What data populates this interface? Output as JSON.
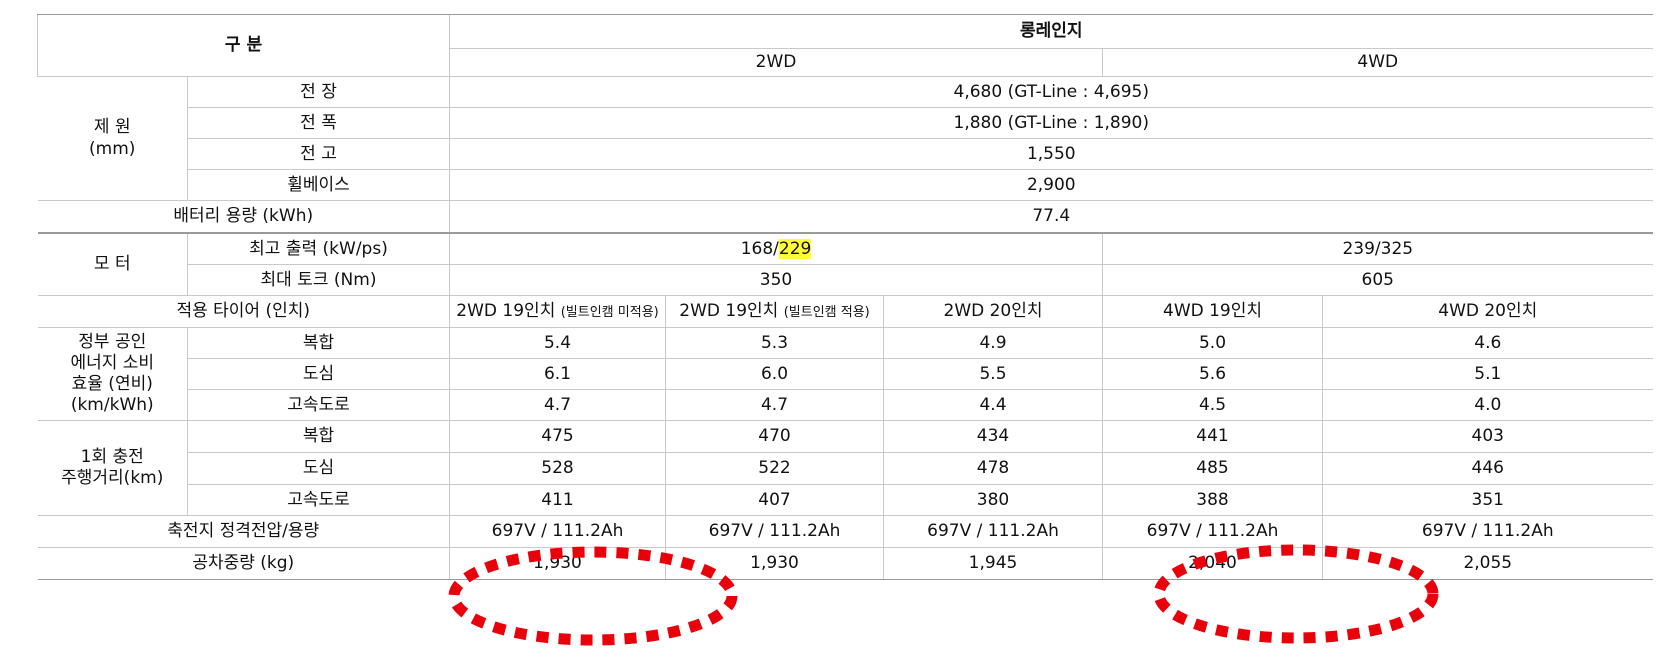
{
  "header": {
    "category": "구 분",
    "long_range": "롱레인지",
    "wd2": "2WD",
    "wd4": "4WD"
  },
  "specs": {
    "group_label": "제 원",
    "group_unit": "(mm)",
    "length_label": "전 장",
    "length_value": "4,680 (GT-Line : 4,695)",
    "width_label": "전 폭",
    "width_value": "1,880 (GT-Line : 1,890)",
    "height_label": "전 고",
    "height_value": "1,550",
    "wheelbase_label": "휠베이스",
    "wheelbase_value": "2,900"
  },
  "battery": {
    "label": "배터리 용량 (kWh)",
    "value": "77.4"
  },
  "motor": {
    "group_label": "모 터",
    "power_label": "최고 출력 (kW/ps)",
    "power_2wd_kw": "168/",
    "power_2wd_ps": "229",
    "power_4wd": "239/325",
    "torque_label": "최대 토크 (Nm)",
    "torque_2wd": "350",
    "torque_4wd": "605"
  },
  "tires": {
    "label": "적용 타이어 (인치)",
    "columns": [
      {
        "main": "2WD 19인치 ",
        "note": "(빌트인캠 미적용)"
      },
      {
        "main": "2WD 19인치 ",
        "note": "(빌트인캠 적용)"
      },
      {
        "main": "2WD 20인치",
        "note": ""
      },
      {
        "main": "4WD 19인치",
        "note": ""
      },
      {
        "main": "4WD 20인치",
        "note": ""
      }
    ]
  },
  "efficiency": {
    "group_line1": "정부 공인",
    "group_line2": "에너지 소비",
    "group_line3": "효율 (연비)",
    "group_line4": "(km/kWh)",
    "rows": [
      {
        "label": "복합",
        "values": [
          "5.4",
          "5.3",
          "4.9",
          "5.0",
          "4.6"
        ]
      },
      {
        "label": "도심",
        "values": [
          "6.1",
          "6.0",
          "5.5",
          "5.6",
          "5.1"
        ]
      },
      {
        "label": "고속도로",
        "values": [
          "4.7",
          "4.7",
          "4.4",
          "4.5",
          "4.0"
        ]
      }
    ]
  },
  "range": {
    "group_line1": "1회 충전",
    "group_line2": "주행거리(km)",
    "rows": [
      {
        "label": "복합",
        "values": [
          "475",
          "470",
          "434",
          "441",
          "403"
        ]
      },
      {
        "label": "도심",
        "values": [
          "528",
          "522",
          "478",
          "485",
          "446"
        ]
      },
      {
        "label": "고속도로",
        "values": [
          "411",
          "407",
          "380",
          "388",
          "351"
        ]
      }
    ]
  },
  "voltage": {
    "label": "축전지 정격전압/용량",
    "values": [
      "697V / 111.2Ah",
      "697V / 111.2Ah",
      "697V / 111.2Ah",
      "697V / 111.2Ah",
      "697V / 111.2Ah"
    ]
  },
  "weight": {
    "label": "공차중량 (kg)",
    "values": [
      "1,930",
      "1,930",
      "1,945",
      "2,040",
      "2,055"
    ]
  },
  "annotation_color": "#e8000a"
}
